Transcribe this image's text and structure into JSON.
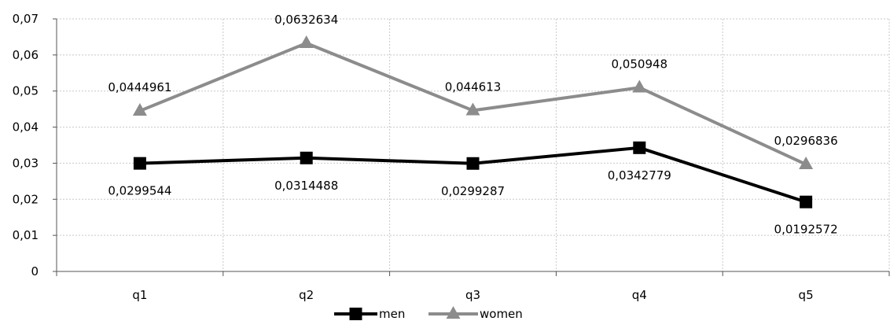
{
  "chart_data": {
    "type": "line",
    "categories": [
      "q1",
      "q2",
      "q3",
      "q4",
      "q5"
    ],
    "ylim": [
      0,
      0.07
    ],
    "yticks": [
      0,
      0.01,
      0.02,
      0.03,
      0.04,
      0.05,
      0.06,
      0.07
    ],
    "ytick_labels": [
      "0",
      "0,01",
      "0,02",
      "0,03",
      "0,04",
      "0,05",
      "0,06",
      "0,07"
    ],
    "grid": true,
    "legend_position": "bottom",
    "series": [
      {
        "name": "men",
        "color": "#000000",
        "marker": "square",
        "values": [
          0.0299544,
          0.0314488,
          0.0299287,
          0.0342779,
          0.0192572
        ],
        "labels": [
          "0,0299544",
          "0,0314488",
          "0,0299287",
          "0,0342779",
          "0,0192572"
        ],
        "label_position": "below"
      },
      {
        "name": "women",
        "color": "#8c8c8c",
        "marker": "triangle",
        "values": [
          0.0444961,
          0.0632634,
          0.044613,
          0.050948,
          0.0296836
        ],
        "labels": [
          "0,0444961",
          "0,0632634",
          "0,044613",
          "0,050948",
          "0,0296836"
        ],
        "label_position": "above"
      }
    ]
  }
}
